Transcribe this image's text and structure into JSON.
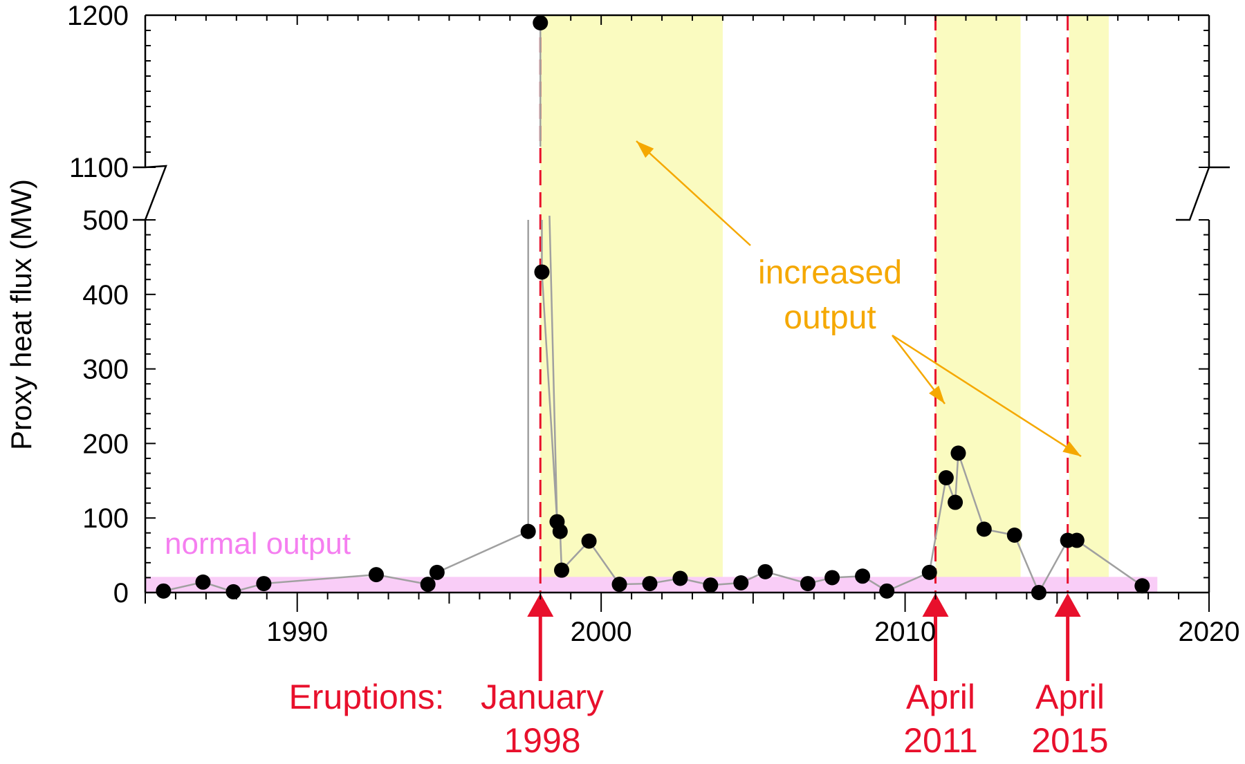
{
  "chart_data": {
    "type": "scatter",
    "ylabel": "Proxy heat flux (MW)",
    "xlim": [
      1985,
      2020
    ],
    "xticks": [
      1990,
      2000,
      2010,
      2020
    ],
    "ylim_lower": [
      0,
      500
    ],
    "yticks_lower": [
      0,
      100,
      200,
      300,
      400,
      500
    ],
    "ylim_upper": [
      1100,
      1200
    ],
    "yticks_upper": [
      1100,
      1200
    ],
    "axis_break": true,
    "colors": {
      "points": "#000000",
      "line": "#a0a0a0",
      "eruption": "#e8102c",
      "increased": "#fafbc0",
      "normal": "#f9cdf7",
      "increased_text": "#f5a800",
      "normal_text": "#f57ff0"
    },
    "series": [
      {
        "x": [
          1985.6,
          1986.9,
          1987.9,
          1988.9,
          1992.6,
          1994.3,
          1994.6,
          1997.6,
          1998.0,
          1998.05,
          1998.55,
          1998.65,
          1998.7,
          1999.6,
          2000.6,
          2001.6,
          2002.6,
          2003.6,
          2004.6,
          2005.4,
          2006.8,
          2007.6,
          2008.6,
          2009.4,
          2010.8,
          2011.35,
          2011.65,
          2011.75,
          2012.6,
          2013.6,
          2014.4,
          2015.35,
          2015.65,
          2017.8
        ],
        "y": [
          2,
          14,
          1,
          12,
          24,
          11,
          27,
          82,
          1195,
          430,
          95,
          82,
          30,
          69,
          11,
          12,
          19,
          10,
          13,
          28,
          12,
          20,
          22,
          2,
          27,
          154,
          121,
          187,
          85,
          77,
          0,
          70,
          70,
          9
        ]
      }
    ],
    "increased_periods": [
      [
        1998.0,
        2004.0
      ],
      [
        2011.0,
        2013.8
      ],
      [
        2015.4,
        2016.7
      ]
    ],
    "normal_band": {
      "x": [
        1985.0,
        2018.3
      ],
      "y": [
        0,
        21
      ]
    },
    "eruptions": [
      1998.0,
      2011.0,
      2015.35
    ],
    "annotations": {
      "eruptions_label": "Eruptions:",
      "eruption_1": [
        "January",
        "1998"
      ],
      "eruption_2": [
        "April",
        "2011"
      ],
      "eruption_3": [
        "April",
        "2015"
      ],
      "increased": [
        "increased",
        "output"
      ],
      "normal": "normal output"
    }
  }
}
